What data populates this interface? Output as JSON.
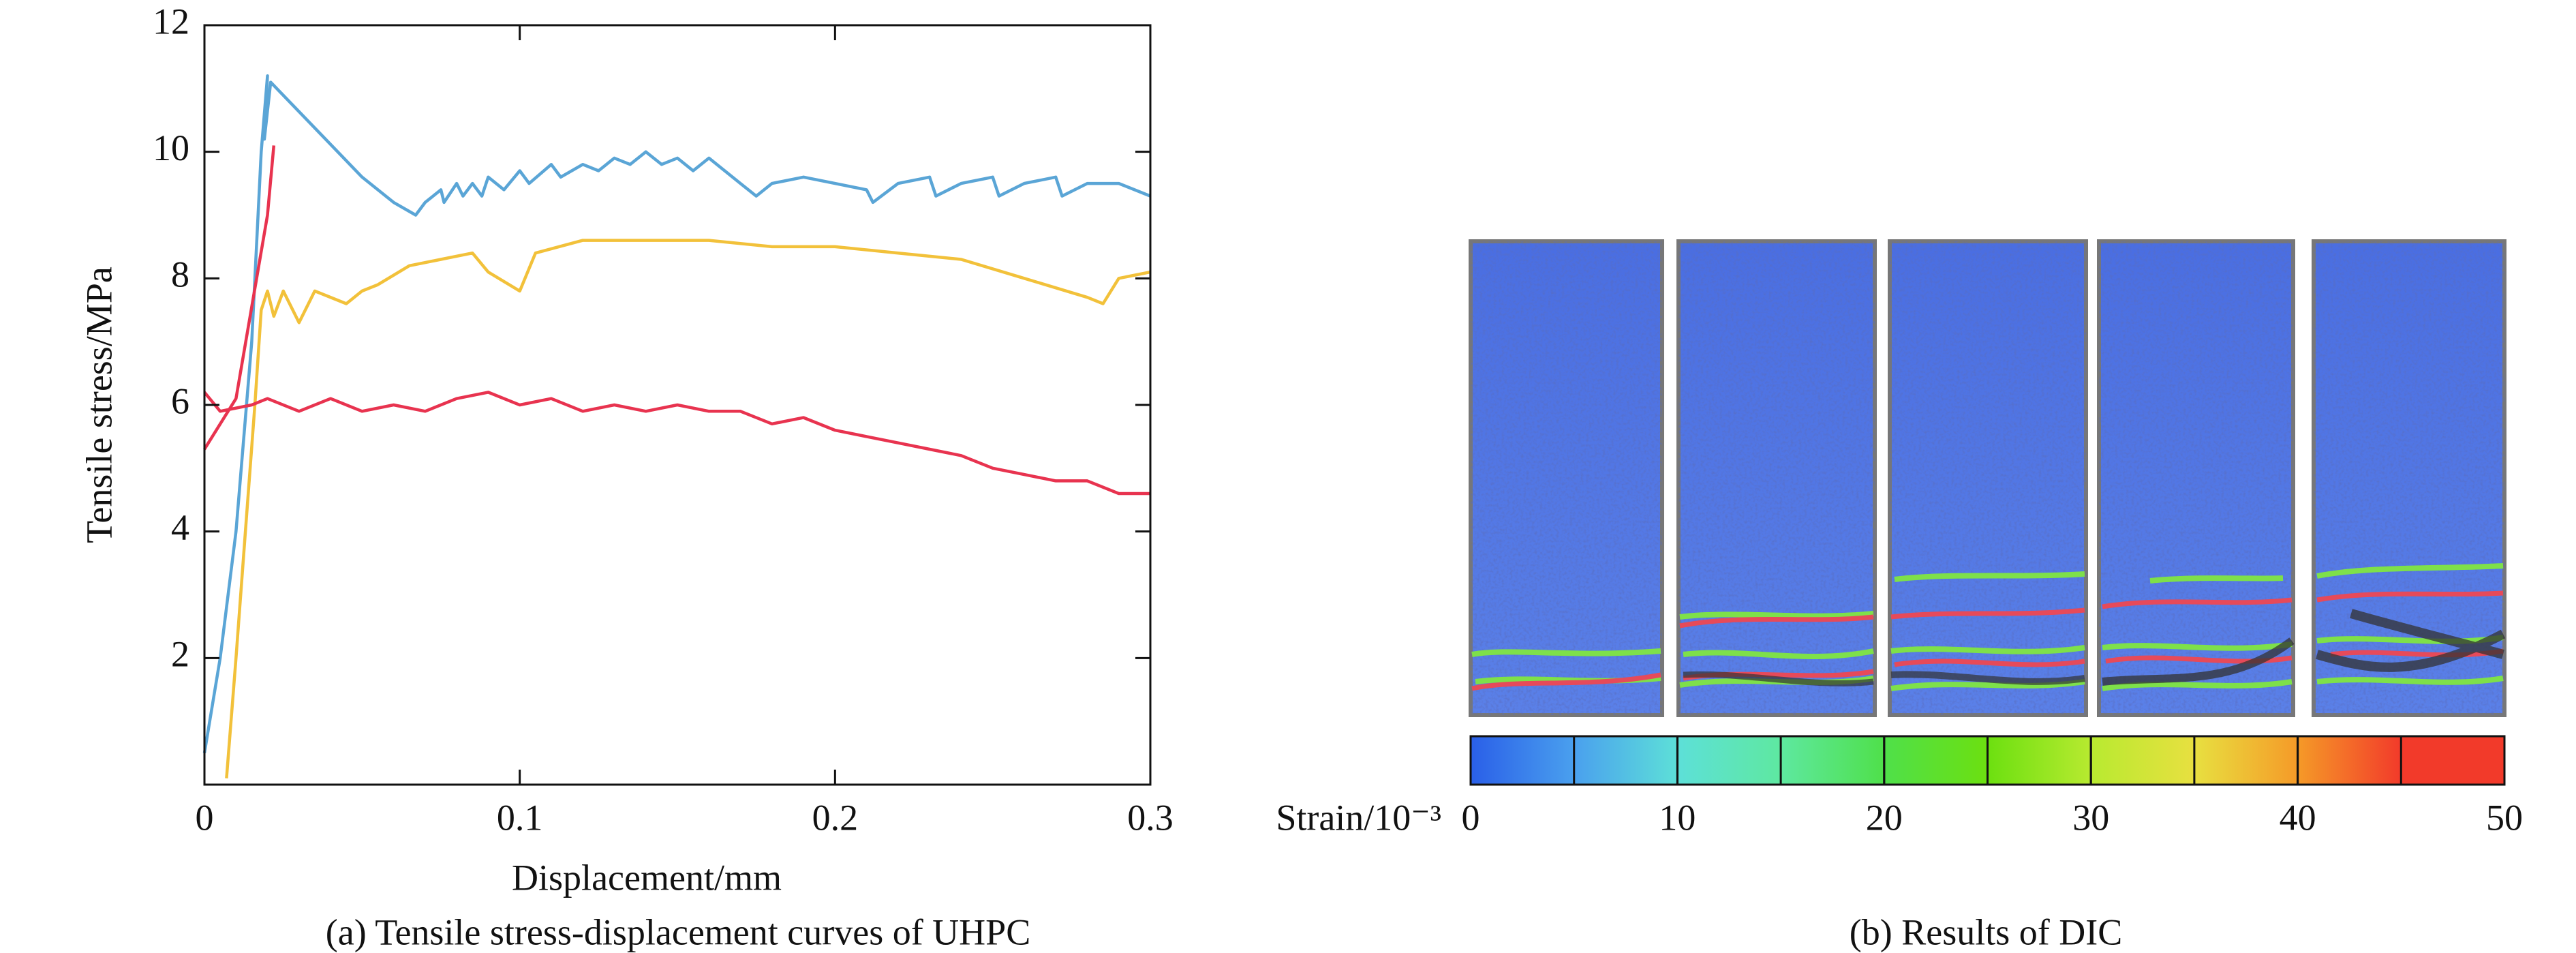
{
  "chart_data": [
    {
      "type": "line",
      "ylabel": "Tensile stress/MPa",
      "xlabel": "Displacement/mm",
      "caption": "(a) Tensile stress-displacement curves of UHPC",
      "xlim": [
        0,
        0.3
      ],
      "xticks": [
        0,
        0.1,
        0.2,
        0.3
      ],
      "ylim": [
        0,
        12
      ],
      "yticks": [
        2,
        4,
        6,
        8,
        10,
        12
      ],
      "series": [
        {
          "color": "#5aa5d6",
          "x": [
            0,
            0.005,
            0.01,
            0.015,
            0.018,
            0.02,
            0.019,
            0.021,
            0.05,
            0.06,
            0.067,
            0.07,
            0.075,
            0.076,
            0.08,
            0.082,
            0.085,
            0.088,
            0.09,
            0.095,
            0.1,
            0.103,
            0.11,
            0.113,
            0.12,
            0.125,
            0.13,
            0.135,
            0.14,
            0.145,
            0.15,
            0.155,
            0.16,
            0.17,
            0.175,
            0.18,
            0.19,
            0.2,
            0.21,
            0.212,
            0.22,
            0.23,
            0.232,
            0.24,
            0.25,
            0.252,
            0.26,
            0.27,
            0.272,
            0.28,
            0.29,
            0.3
          ],
          "values": [
            0.5,
            2,
            4,
            7,
            10,
            11.2,
            10.2,
            11.1,
            9.6,
            9.2,
            9.0,
            9.2,
            9.4,
            9.2,
            9.5,
            9.3,
            9.5,
            9.3,
            9.6,
            9.4,
            9.7,
            9.5,
            9.8,
            9.6,
            9.8,
            9.7,
            9.9,
            9.8,
            10.0,
            9.8,
            9.9,
            9.7,
            9.9,
            9.5,
            9.3,
            9.5,
            9.6,
            9.5,
            9.4,
            9.2,
            9.5,
            9.6,
            9.3,
            9.5,
            9.6,
            9.3,
            9.5,
            9.6,
            9.3,
            9.5,
            9.5,
            9.3
          ]
        },
        {
          "color": "#f2c13a",
          "x": [
            0.007,
            0.01,
            0.013,
            0.016,
            0.018,
            0.02,
            0.022,
            0.025,
            0.03,
            0.035,
            0.045,
            0.05,
            0.055,
            0.065,
            0.075,
            0.085,
            0.09,
            0.1,
            0.105,
            0.12,
            0.14,
            0.16,
            0.18,
            0.2,
            0.22,
            0.24,
            0.26,
            0.28,
            0.285,
            0.29,
            0.3
          ],
          "values": [
            0.1,
            2,
            4,
            6,
            7.5,
            7.8,
            7.4,
            7.8,
            7.3,
            7.8,
            7.6,
            7.8,
            7.9,
            8.2,
            8.3,
            8.4,
            8.1,
            7.8,
            8.4,
            8.6,
            8.6,
            8.6,
            8.5,
            8.5,
            8.4,
            8.3,
            8.0,
            7.7,
            7.6,
            8.0,
            8.1
          ]
        },
        {
          "color": "#e8334f",
          "x": [
            0,
            0.01,
            0.02,
            0.022,
            null,
            0,
            0.005,
            0.015,
            0.02,
            0.03,
            0.04,
            0.05,
            0.06,
            0.07,
            0.08,
            0.09,
            0.1,
            0.11,
            0.12,
            0.13,
            0.14,
            0.15,
            0.16,
            0.17,
            0.18,
            0.19,
            0.2,
            0.21,
            0.22,
            0.23,
            0.24,
            0.25,
            0.26,
            0.27,
            0.28,
            0.29,
            0.3
          ],
          "values": [
            5.3,
            6.1,
            9.0,
            10.1,
            null,
            6.2,
            5.9,
            6.0,
            6.1,
            5.9,
            6.1,
            5.9,
            6.0,
            5.9,
            6.1,
            6.2,
            6.0,
            6.1,
            5.9,
            6.0,
            5.9,
            6.0,
            5.9,
            5.9,
            5.7,
            5.8,
            5.6,
            5.5,
            5.4,
            5.3,
            5.2,
            5.0,
            4.9,
            4.8,
            4.8,
            4.6,
            4.6
          ]
        }
      ]
    },
    {
      "type": "colorbar",
      "label": "Strain/10⁻³",
      "caption": "(b) Results of DIC",
      "xlim": [
        0,
        50
      ],
      "xticks": [
        0,
        10,
        20,
        30,
        40,
        50
      ],
      "colors": [
        "#2a5fe8",
        "#4aa0ee",
        "#5de0d8",
        "#5ee8a0",
        "#4fe04a",
        "#6ce010",
        "#b8ea30",
        "#e8e040",
        "#f59a28",
        "#f23a2a"
      ]
    }
  ]
}
